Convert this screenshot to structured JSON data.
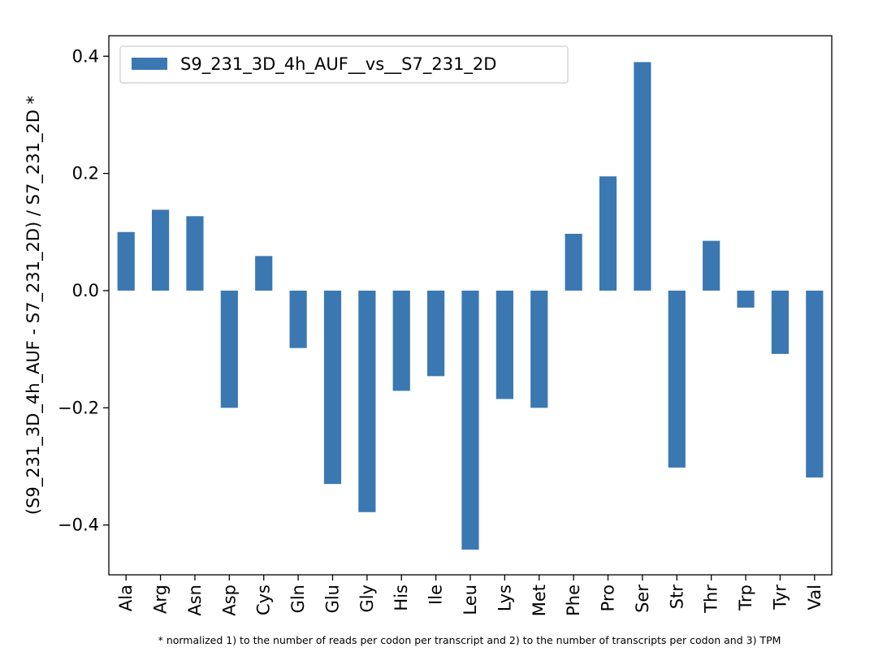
{
  "chart_data": {
    "type": "bar",
    "title": "",
    "ylabel": "(S9_231_3D_4h_AUF - S7_231_2D) / S7_231_2D *",
    "xlabel": "",
    "footnote": "* normalized 1) to the number of reads per codon per transcript and 2) to the number of transcripts per codon and 3) TPM",
    "ylim": [
      -0.485,
      0.435
    ],
    "yticks": [
      -0.4,
      -0.2,
      0.0,
      0.2,
      0.4
    ],
    "ytick_labels": [
      "−0.4",
      "−0.2",
      "0.0",
      "0.2",
      "0.4"
    ],
    "categories": [
      "Ala",
      "Arg",
      "Asn",
      "Asp",
      "Cys",
      "Gln",
      "Glu",
      "Gly",
      "His",
      "Ile",
      "Leu",
      "Lys",
      "Met",
      "Phe",
      "Pro",
      "Ser",
      "Str",
      "Thr",
      "Trp",
      "Tyr",
      "Val"
    ],
    "series": [
      {
        "name": "S9_231_3D_4h_AUF__vs__S7_231_2D",
        "color": "#3b78b2",
        "values": [
          0.1,
          0.138,
          0.127,
          -0.2,
          0.059,
          -0.098,
          -0.33,
          -0.378,
          -0.171,
          -0.146,
          -0.442,
          -0.185,
          -0.2,
          0.097,
          0.195,
          0.39,
          -0.302,
          0.085,
          -0.029,
          -0.108,
          -0.319
        ]
      }
    ],
    "legend_position": "top-left",
    "grid": false
  }
}
